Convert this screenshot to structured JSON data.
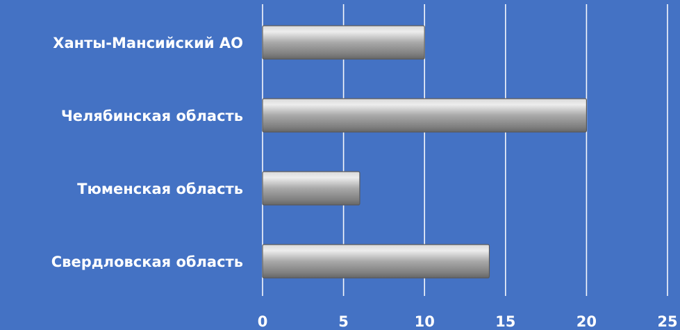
{
  "chart_data": {
    "type": "bar",
    "orientation": "horizontal",
    "title": "",
    "xlabel": "",
    "ylabel": "",
    "categories": [
      "Ханты-Мансийский АО",
      "Челябинская область",
      "Тюменская область",
      "Свердловская область"
    ],
    "values": [
      10,
      20,
      6,
      14
    ],
    "xlim": [
      0,
      25
    ],
    "x_ticks": [
      "0",
      "5",
      "10",
      "15",
      "20",
      "25"
    ],
    "grid": "vertical",
    "legend": "none",
    "colors": {
      "background": "#4472c4",
      "bar_fill": "#9e9e9e",
      "text": "#ffffff",
      "grid": "#ffffff"
    }
  }
}
